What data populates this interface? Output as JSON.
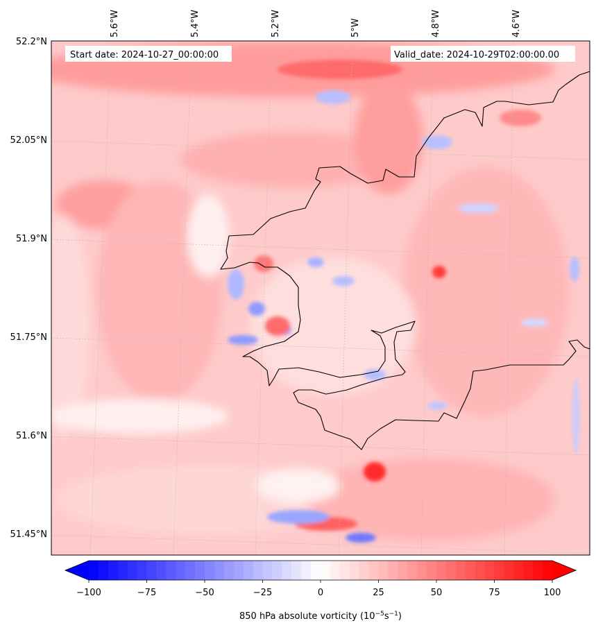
{
  "header": {
    "start_date": "Start date: 2024-10-27_00:00:00",
    "valid_date": "Valid_date: 2024-10-29T02:00:00.00"
  },
  "axes": {
    "lon_ticks": [
      "5.6°W",
      "5.4°W",
      "5.2°W",
      "5°W",
      "4.8°W",
      "4.6°W"
    ],
    "lat_ticks": [
      "52.2°N",
      "52.05°N",
      "51.9°N",
      "51.75°N",
      "51.6°N",
      "51.45°N"
    ]
  },
  "colorbar": {
    "ticks": [
      "−100",
      "−75",
      "−50",
      "−25",
      "0",
      "25",
      "50",
      "75",
      "100"
    ],
    "label_main": "850 hPa absolute vorticity (10",
    "label_exp1": "−5",
    "label_mid": "s",
    "label_exp2": "−1",
    "label_end": ")",
    "min": -100,
    "max": 100,
    "levels": 48,
    "colormap": "bwr"
  },
  "colors": {
    "coastline": "#000000",
    "grid": "#bbbbbb",
    "background_field": "#ffc4c4"
  }
}
